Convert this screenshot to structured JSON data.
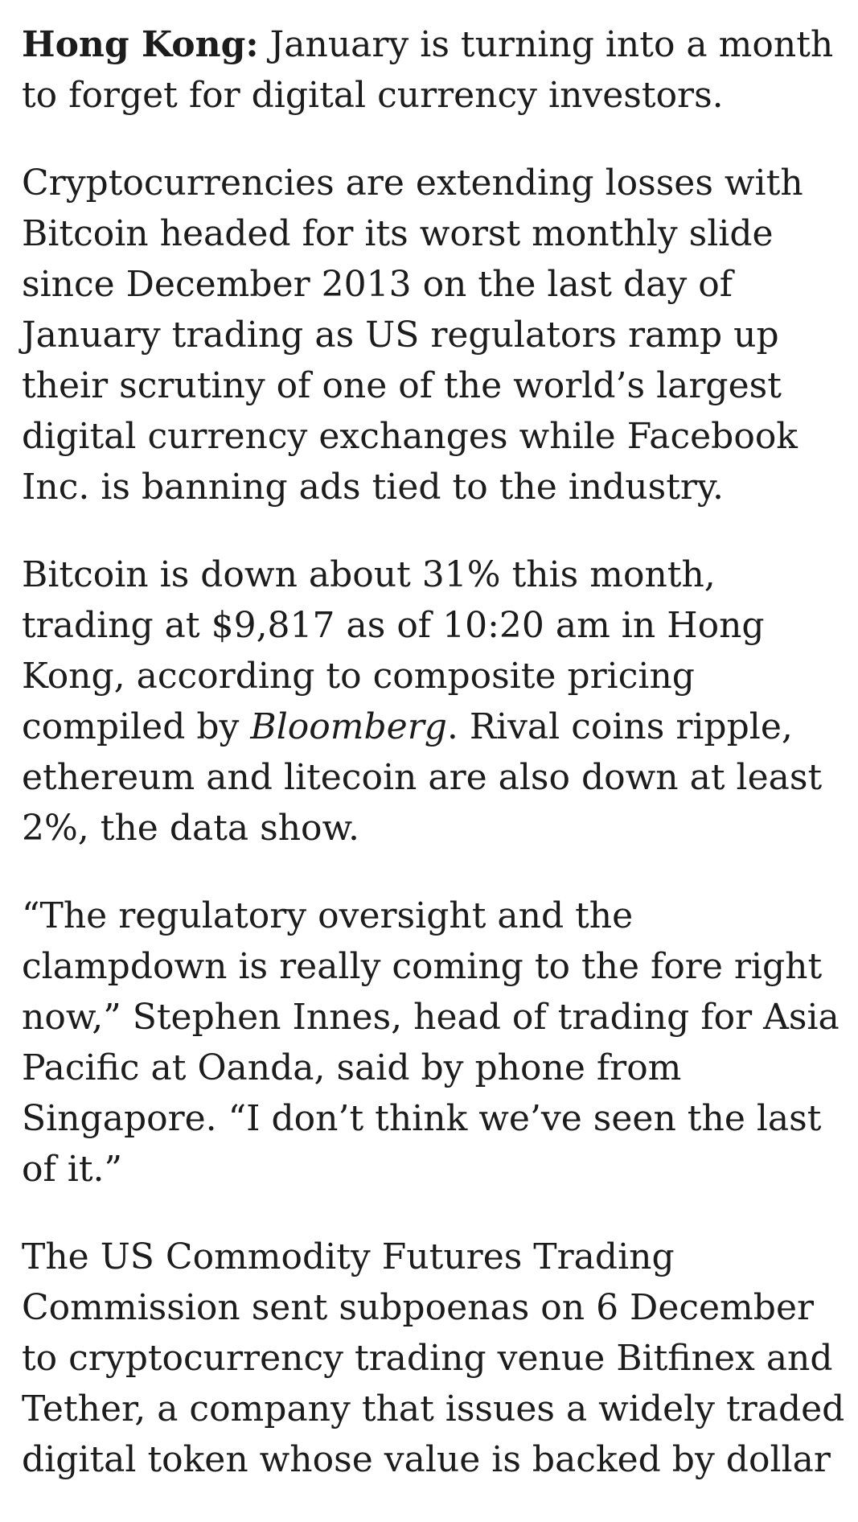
{
  "article": {
    "p1": {
      "dateline": "Hong Kong:",
      "lines": [
        " January is turning into a month",
        "to forget for digital currency investors."
      ]
    },
    "p2": {
      "lines": [
        "Cryptocurrencies are extending losses with",
        "Bitcoin headed for its worst monthly slide",
        "since December 2013 on the last day of",
        "January trading as US regulators ramp up",
        "their scrutiny of one of the world’s largest",
        "digital currency exchanges while Facebook",
        "Inc. is banning ads tied to the industry."
      ]
    },
    "p3": {
      "lines": [
        "Bitcoin is down about 31% this month,",
        "trading at $9,817 as of 10:20 am in Hong",
        "Kong, according to composite pricing"
      ],
      "line4_pre": "compiled by ",
      "line4_italic": "Bloomberg",
      "line4_post": ". Rival coins ripple,",
      "lines_end": [
        "ethereum and litecoin are also down at least",
        "2%, the data show."
      ]
    },
    "p4": {
      "lines": [
        "“The regulatory oversight and the",
        "clampdown is really coming to the fore right",
        "now,” Stephen Innes, head of trading for Asia",
        "Pacific at Oanda, said by phone from",
        "Singapore. “I don’t think we’ve seen the last",
        "of it.”"
      ]
    },
    "p5": {
      "lines": [
        "The US Commodity Futures Trading",
        "Commission sent subpoenas on 6 December",
        "to cryptocurrency trading venue Bitfinex and",
        "Tether, a company that issues a widely traded",
        "digital token whose value is backed by dollar"
      ]
    }
  }
}
